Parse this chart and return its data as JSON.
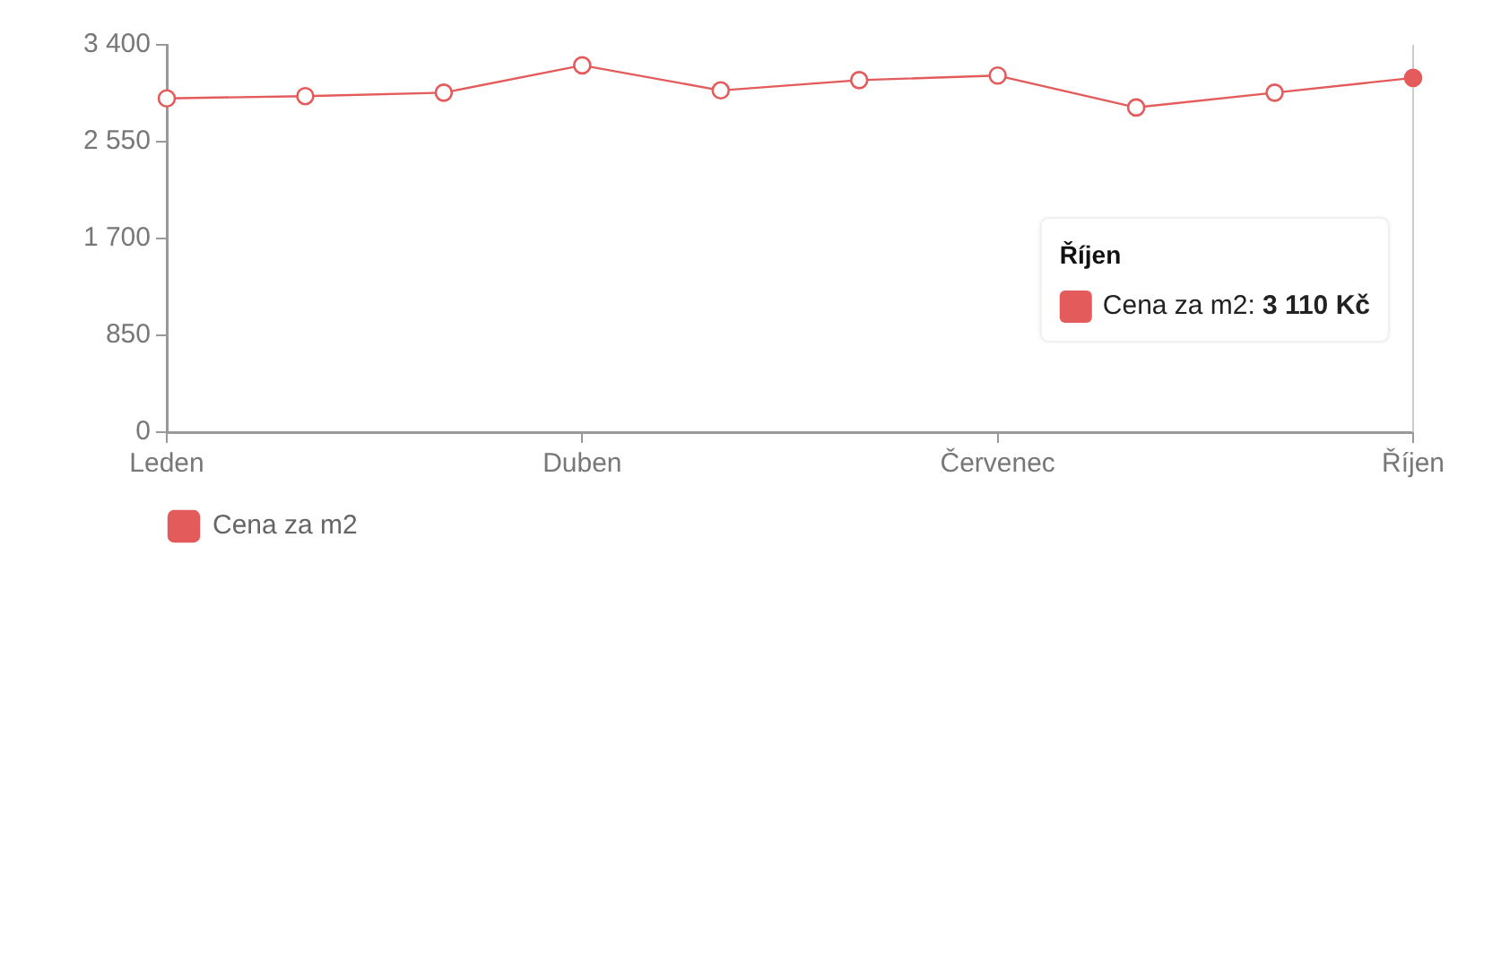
{
  "chart_data": {
    "type": "line",
    "categories": [
      "Leden",
      null,
      null,
      "Duben",
      null,
      null,
      "Červenec",
      null,
      null,
      "Říjen"
    ],
    "series": [
      {
        "name": "Cena za m2",
        "color": "#e35b5b",
        "values": [
          2930,
          2950,
          2980,
          3220,
          3000,
          3090,
          3130,
          2850,
          2980,
          3110
        ]
      }
    ],
    "ylim": [
      0,
      3400
    ],
    "yticks": [
      0,
      850,
      {
        "value": 1700,
        "label": "1 700"
      },
      {
        "value": 2550,
        "label": "2 550"
      },
      {
        "value": 3400,
        "label": "3 400"
      }
    ],
    "legend": "bottom left",
    "marker": "circle",
    "line_style": "solid",
    "ref_lines": [
      {
        "axis": "x",
        "value": "Říjen",
        "color": "#cccccc"
      }
    ],
    "annotations": [
      "Říjen\nCena za m2: 3 110 Kč"
    ]
  }
}
